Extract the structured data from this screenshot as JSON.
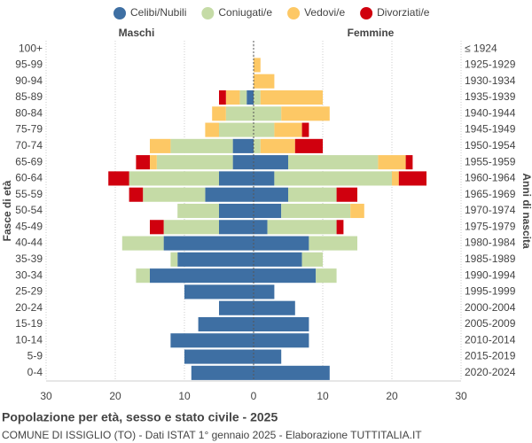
{
  "chart_data": {
    "type": "population-pyramid",
    "title": "Popolazione per età, sesso e stato civile - 2025",
    "subtitle": "COMUNE DI ISSIGLIO (TO) - Dati ISTAT 1° gennaio 2025 - Elaborazione TUTTITALIA.IT",
    "left_label": "Maschi",
    "right_label": "Femmine",
    "y_axis_label": "Fasce di età",
    "y2_axis_label": "Anni di nascita",
    "categories": [
      "100+",
      "95-99",
      "90-94",
      "85-89",
      "80-84",
      "75-79",
      "70-74",
      "65-69",
      "60-64",
      "55-59",
      "50-54",
      "45-49",
      "40-44",
      "35-39",
      "30-34",
      "25-29",
      "20-24",
      "15-19",
      "10-14",
      "5-9",
      "0-4"
    ],
    "birth_years": [
      "≤ 1924",
      "1925-1929",
      "1930-1934",
      "1935-1939",
      "1940-1944",
      "1945-1949",
      "1950-1954",
      "1955-1959",
      "1960-1964",
      "1965-1969",
      "1970-1974",
      "1975-1979",
      "1980-1984",
      "1985-1989",
      "1990-1994",
      "1995-1999",
      "2000-2004",
      "2005-2009",
      "2010-2014",
      "2015-2019",
      "2020-2024"
    ],
    "series": [
      {
        "name": "Celibi/Nubili",
        "color": "#3e6fa3",
        "male": [
          0,
          0,
          0,
          1,
          0,
          0,
          3,
          3,
          5,
          7,
          5,
          5,
          13,
          11,
          15,
          10,
          5,
          8,
          12,
          10,
          9
        ],
        "female": [
          0,
          0,
          0,
          0,
          0,
          0,
          0,
          5,
          3,
          5,
          4,
          2,
          8,
          7,
          9,
          3,
          6,
          8,
          8,
          4,
          11
        ]
      },
      {
        "name": "Coniugati/e",
        "color": "#c5dba6",
        "male": [
          0,
          0,
          0,
          1,
          4,
          5,
          9,
          11,
          13,
          9,
          6,
          8,
          6,
          1,
          2,
          0,
          0,
          0,
          0,
          0,
          0
        ],
        "female": [
          0,
          0,
          0,
          1,
          4,
          3,
          1,
          13,
          17,
          7,
          10,
          10,
          7,
          3,
          3,
          0,
          0,
          0,
          0,
          0,
          0
        ]
      },
      {
        "name": "Vedovi/e",
        "color": "#fdc865",
        "male": [
          0,
          0,
          0,
          2,
          2,
          2,
          3,
          1,
          0,
          0,
          0,
          0,
          0,
          0,
          0,
          0,
          0,
          0,
          0,
          0,
          0
        ],
        "female": [
          0,
          1,
          3,
          9,
          7,
          4,
          5,
          4,
          1,
          0,
          2,
          0,
          0,
          0,
          0,
          0,
          0,
          0,
          0,
          0,
          0
        ]
      },
      {
        "name": "Divorziati/e",
        "color": "#d0000e",
        "male": [
          0,
          0,
          0,
          1,
          0,
          0,
          0,
          2,
          3,
          2,
          0,
          2,
          0,
          0,
          0,
          0,
          0,
          0,
          0,
          0,
          0
        ],
        "female": [
          0,
          0,
          0,
          0,
          0,
          1,
          4,
          1,
          4,
          3,
          0,
          1,
          0,
          0,
          0,
          0,
          0,
          0,
          0,
          0,
          0
        ]
      }
    ],
    "xlim": [
      -30,
      30
    ],
    "xticks": [
      {
        "value": -30,
        "label": "30"
      },
      {
        "value": -20,
        "label": "20"
      },
      {
        "value": -10,
        "label": "10"
      },
      0,
      10,
      20,
      30
    ],
    "grid": true
  }
}
